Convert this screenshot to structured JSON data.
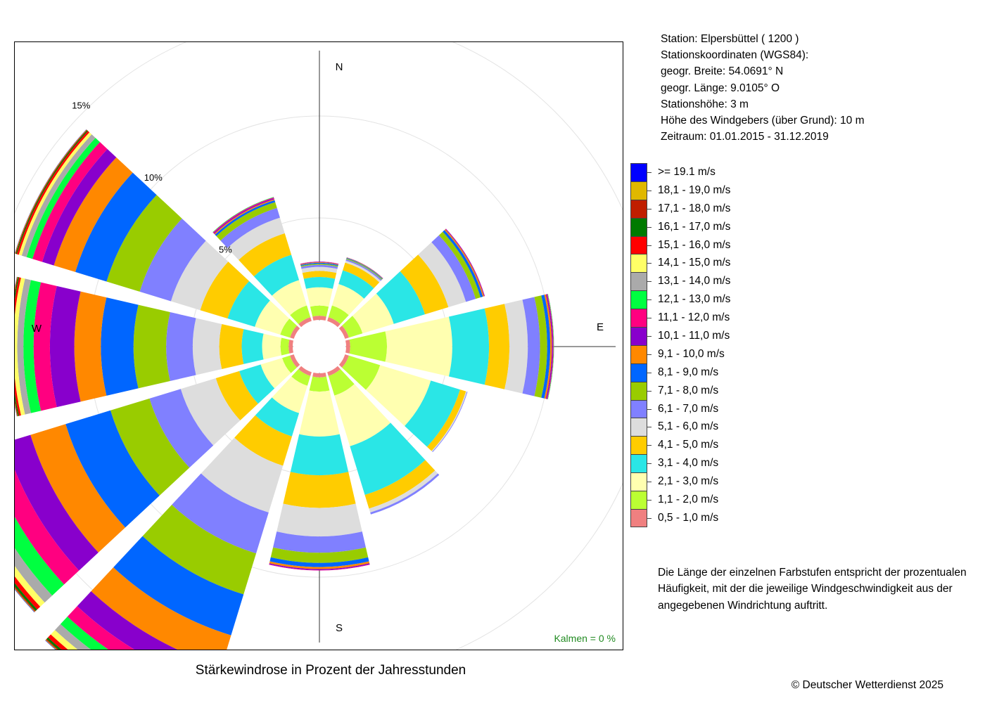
{
  "station": {
    "lines": [
      "Station:  Elpersbüttel  ( 1200 )",
      "Stationskoordinaten (WGS84):",
      "geogr. Breite: 54.0691° N",
      "geogr. Länge:   9.0105° O",
      "Stationshöhe: 3 m",
      "Höhe des Windgebers (über Grund): 10 m",
      "Zeitraum: 01.01.2015 - 31.12.2019"
    ]
  },
  "legend": [
    {
      "label": ">= 19.1 m/s",
      "color": "#0000ff"
    },
    {
      "label": "18,1 - 19,0 m/s",
      "color": "#e0b800"
    },
    {
      "label": "17,1 - 18,0 m/s",
      "color": "#c01e00"
    },
    {
      "label": "16,1 - 17,0 m/s",
      "color": "#007a00"
    },
    {
      "label": "15,1 - 16,0 m/s",
      "color": "#ff0000"
    },
    {
      "label": "14,1 - 15,0 m/s",
      "color": "#ffff66"
    },
    {
      "label": "13,1 - 14,0 m/s",
      "color": "#aaaaaa"
    },
    {
      "label": "12,1 - 13,0 m/s",
      "color": "#00ff40"
    },
    {
      "label": "11,1 - 12,0 m/s",
      "color": "#ff0080"
    },
    {
      "label": "10,1 - 11,0 m/s",
      "color": "#8800cc"
    },
    {
      "label": "9,1 - 10,0 m/s",
      "color": "#ff8800"
    },
    {
      "label": "8,1 - 9,0 m/s",
      "color": "#0066ff"
    },
    {
      "label": "7,1 - 8,0 m/s",
      "color": "#99cc00"
    },
    {
      "label": "6,1 - 7,0 m/s",
      "color": "#8080ff"
    },
    {
      "label": "5,1 - 6,0 m/s",
      "color": "#dddddd"
    },
    {
      "label": "4,1 - 5,0 m/s",
      "color": "#ffcc00"
    },
    {
      "label": "3,1 - 4,0 m/s",
      "color": "#2ae6e6"
    },
    {
      "label": "2,1 - 3,0 m/s",
      "color": "#ffffb0"
    },
    {
      "label": "1,1 - 2,0 m/s",
      "color": "#bbff33"
    },
    {
      "label": "0,5 - 1,0 m/s",
      "color": "#f08080"
    }
  ],
  "note": {
    "lines": [
      "Die Länge der einzelnen Farbstufen entspricht der prozentualen",
      "Häufigkeit, mit der die jeweilige Windgeschwindigkeit aus der",
      "angegebenen Windrichtung auftritt."
    ]
  },
  "title": "Stärkewindrose in Prozent der Jahresstunden",
  "copyright": "© Deutscher Wetterdienst  2025",
  "calm_label": "Kalmen  =  0 %",
  "calm_color": "#228b22",
  "chart_data": {
    "type": "rose",
    "unit": "%",
    "rings": [
      5,
      10,
      15
    ],
    "ring_labels": [
      "5%",
      "10%",
      "15%"
    ],
    "compass_labels": {
      "N": "N",
      "E": "E",
      "S": "S",
      "W": "W"
    },
    "direction_width_deg": 26,
    "bins_order_inner_to_outer": [
      "0,5 - 1,0 m/s",
      "1,1 - 2,0 m/s",
      "2,1 - 3,0 m/s",
      "3,1 - 4,0 m/s",
      "4,1 - 5,0 m/s",
      "5,1 - 6,0 m/s",
      "6,1 - 7,0 m/s",
      "7,1 - 8,0 m/s",
      "8,1 - 9,0 m/s",
      "9,1 - 10,0 m/s",
      "10,1 - 11,0 m/s",
      "11,1 - 12,0 m/s",
      "12,1 - 13,0 m/s",
      "13,1 - 14,0 m/s",
      "14,1 - 15,0 m/s",
      "15,1 - 16,0 m/s",
      "16,1 - 17,0 m/s",
      "17,1 - 18,0 m/s",
      "18,1 - 19,0 m/s",
      ">= 19.1 m/s"
    ],
    "directions": [
      {
        "deg": 0,
        "values": [
          0.2,
          0.5,
          0.9,
          0.5,
          0.3,
          0.2,
          0.1,
          0.05,
          0.05,
          0.03,
          0.02,
          0.01,
          0,
          0,
          0,
          0,
          0,
          0,
          0,
          0
        ]
      },
      {
        "deg": 30,
        "values": [
          0.2,
          0.6,
          1.1,
          0.7,
          0.4,
          0.1,
          0.07,
          0.04,
          0.03,
          0.02,
          0.01,
          0,
          0,
          0,
          0,
          0,
          0,
          0,
          0,
          0
        ]
      },
      {
        "deg": 60,
        "values": [
          0.2,
          0.7,
          1.6,
          1.6,
          1.2,
          0.9,
          0.5,
          0.25,
          0.12,
          0.06,
          0.03,
          0.01,
          0,
          0,
          0,
          0,
          0,
          0,
          0,
          0
        ]
      },
      {
        "deg": 90,
        "values": [
          0.2,
          1.8,
          3.2,
          1.8,
          1.0,
          0.9,
          0.6,
          0.35,
          0.15,
          0.08,
          0.05,
          0.03,
          0.02,
          0.01,
          0,
          0,
          0,
          0,
          0,
          0
        ]
      },
      {
        "deg": 120,
        "values": [
          0.2,
          1.6,
          2.6,
          1.5,
          0.3,
          0.05,
          0.03,
          0,
          0,
          0,
          0,
          0,
          0,
          0,
          0,
          0,
          0,
          0,
          0,
          0
        ]
      },
      {
        "deg": 150,
        "values": [
          0.2,
          1.0,
          2.6,
          2.5,
          0.7,
          0.2,
          0.1,
          0,
          0,
          0,
          0,
          0,
          0,
          0,
          0,
          0,
          0,
          0,
          0,
          0
        ]
      },
      {
        "deg": 180,
        "values": [
          0.2,
          0.7,
          2.2,
          1.9,
          1.6,
          1.4,
          0.8,
          0.5,
          0.2,
          0.1,
          0.05,
          0.02,
          0,
          0,
          0,
          0,
          0,
          0,
          0,
          0
        ]
      },
      {
        "deg": 210,
        "values": [
          0.2,
          0.5,
          1.4,
          1.2,
          1.5,
          2.4,
          2.1,
          2.1,
          2.1,
          1.6,
          1.0,
          0.7,
          0.5,
          0.4,
          0.3,
          0.2,
          0.1,
          0.05,
          0.03,
          0.02
        ]
      },
      {
        "deg": 240,
        "values": [
          0.2,
          0.4,
          1.1,
          1.1,
          1.2,
          1.8,
          1.6,
          2.0,
          2.3,
          1.8,
          1.3,
          1.0,
          0.8,
          0.5,
          0.3,
          0.2,
          0.1,
          0.05,
          0.03,
          0.02
        ]
      },
      {
        "deg": 270,
        "values": [
          0.2,
          0.4,
          0.9,
          1.0,
          1.1,
          1.3,
          1.3,
          1.6,
          1.6,
          1.3,
          1.2,
          0.8,
          0.5,
          0.3,
          0.2,
          0.1,
          0.05,
          0.03,
          0.02,
          0.01
        ]
      },
      {
        "deg": 300,
        "values": [
          0.2,
          0.5,
          1.3,
          1.4,
          1.4,
          1.5,
          1.6,
          1.7,
          1.6,
          1.1,
          0.6,
          0.5,
          0.3,
          0.25,
          0.15,
          0.1,
          0.05,
          0.03,
          0.02,
          0.01
        ]
      },
      {
        "deg": 330,
        "values": [
          0.2,
          0.6,
          1.3,
          1.3,
          1.1,
          0.8,
          0.5,
          0.3,
          0.1,
          0.05,
          0.05,
          0.04,
          0.02,
          0.01,
          0,
          0,
          0,
          0,
          0,
          0
        ]
      }
    ]
  }
}
